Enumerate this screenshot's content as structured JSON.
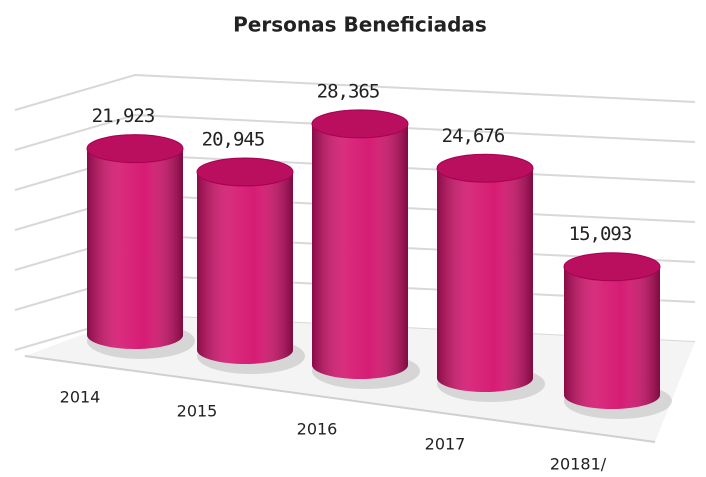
{
  "chart_data": {
    "type": "cylinder",
    "title": "Personas Beneficiadas",
    "categories": [
      "2014",
      "2015",
      "2016",
      "2017",
      "20181/"
    ],
    "values": [
      21923,
      20945,
      28365,
      24676,
      15093
    ],
    "value_labels": [
      "21,923",
      "20,945",
      "28,365",
      "24,676",
      "15,093"
    ],
    "color": "#d4106c",
    "ylim": [
      0,
      30000
    ],
    "grid": true
  }
}
